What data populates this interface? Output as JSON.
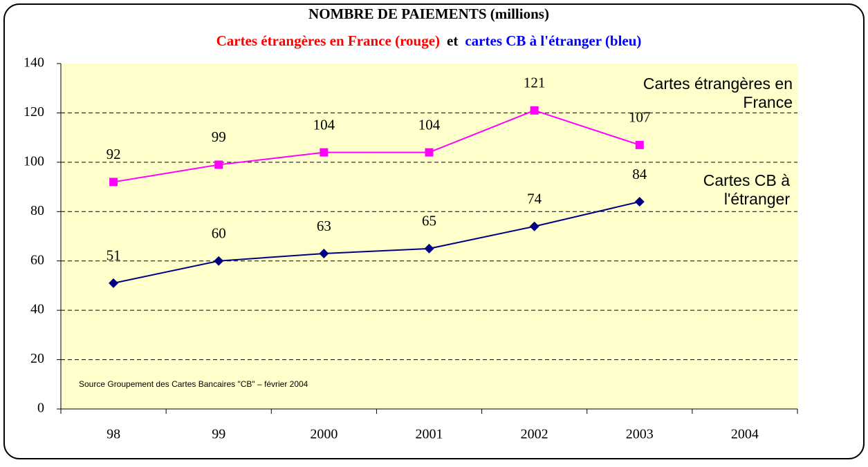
{
  "chart_data": {
    "type": "line",
    "title": "NOMBRE DE PAIEMENTS (millions)",
    "subtitle_parts": [
      {
        "text": "Cartes étrangères en France (rouge)",
        "color": "#ff0000"
      },
      {
        "text": "et",
        "color": "#000000"
      },
      {
        "text": "cartes CB à l'étranger (bleu)",
        "color": "#0000ff"
      }
    ],
    "categories": [
      "98",
      "99",
      "2000",
      "2001",
      "2002",
      "2003",
      "2004"
    ],
    "series": [
      {
        "name": "Cartes étrangères en France",
        "color": "#ff00ff",
        "marker": "square",
        "values": [
          92,
          99,
          104,
          104,
          121,
          107,
          null
        ]
      },
      {
        "name": "Cartes CB à l'étranger",
        "color": "#000080",
        "marker": "diamond",
        "values": [
          51,
          60,
          63,
          65,
          74,
          84,
          null
        ]
      }
    ],
    "ylim": [
      0,
      140
    ],
    "yticks": [
      0,
      20,
      40,
      60,
      80,
      100,
      120,
      140
    ],
    "grid": true,
    "source": "Source Groupement des Cartes Bancaires \"CB\" – février 2004"
  }
}
